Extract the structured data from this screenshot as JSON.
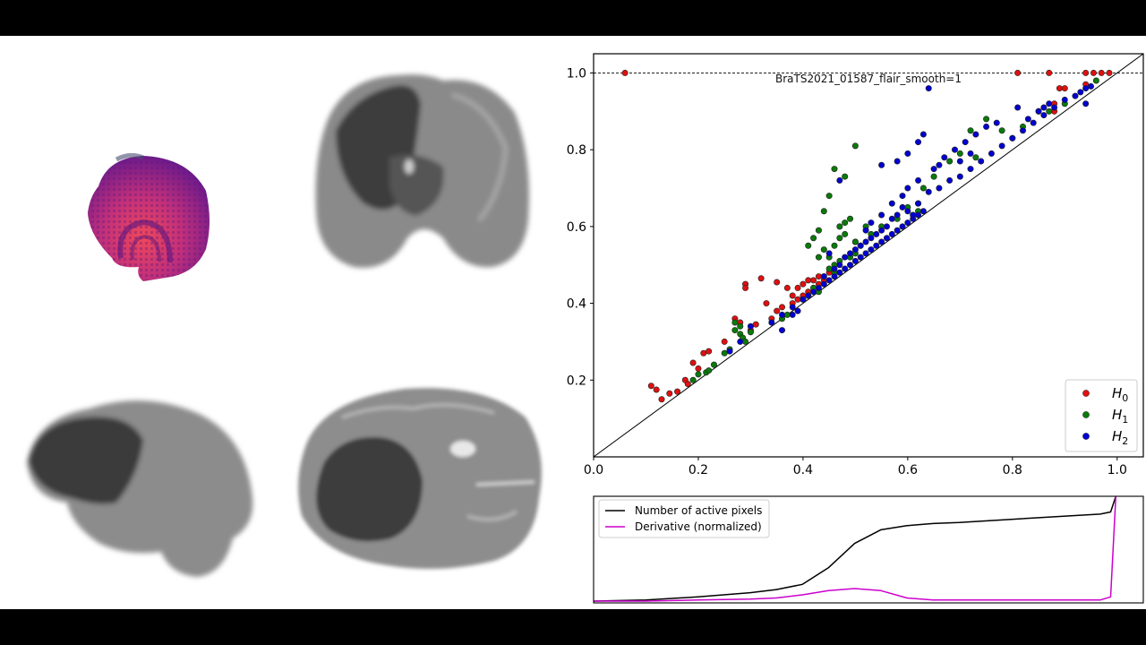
{
  "figure": {
    "title": "BraTS2021_01587_flair_smooth=1",
    "views": [
      {
        "name": "3d-render",
        "label": "3D volume render (magma colormap)"
      },
      {
        "name": "coronal-slice",
        "label": "Coronal slice"
      },
      {
        "name": "sagittal-slice",
        "label": "Sagittal slice"
      },
      {
        "name": "axial-slice",
        "label": "Axial slice"
      }
    ]
  },
  "colors": {
    "H0": "#e01010",
    "H1": "#0a7a0a",
    "H2": "#0000d0",
    "active_pixels": "#000000",
    "derivative": "#cc00cc"
  },
  "chart_data": [
    {
      "type": "scatter",
      "title": "BraTS2021_01587_flair_smooth=1",
      "xlabel": "",
      "ylabel": "",
      "xlim": [
        0.0,
        1.05
      ],
      "ylim": [
        0.0,
        1.05
      ],
      "xticks": [
        "0.0",
        "0.2",
        "0.4",
        "0.6",
        "0.8",
        "1.0"
      ],
      "yticks": [
        "0.2",
        "0.4",
        "0.6",
        "0.8",
        "1.0"
      ],
      "grid": false,
      "reference_lines": [
        {
          "type": "diagonal",
          "from": [
            0,
            0
          ],
          "to": [
            1.05,
            1.05
          ],
          "style": "solid"
        },
        {
          "type": "horizontal",
          "y": 1.0,
          "style": "dashed"
        }
      ],
      "legend": {
        "position": "lower right",
        "entries": [
          "H0",
          "H1",
          "H2"
        ]
      },
      "series": [
        {
          "name": "H0",
          "label_base": "H",
          "label_sub": "0",
          "points": [
            [
              0.06,
              1.0
            ],
            [
              0.81,
              1.0
            ],
            [
              0.87,
              1.0
            ],
            [
              0.94,
              1.0
            ],
            [
              0.955,
              1.0
            ],
            [
              0.97,
              1.0
            ],
            [
              0.985,
              1.0
            ],
            [
              0.11,
              0.185
            ],
            [
              0.12,
              0.175
            ],
            [
              0.13,
              0.15
            ],
            [
              0.145,
              0.165
            ],
            [
              0.16,
              0.17
            ],
            [
              0.175,
              0.2
            ],
            [
              0.18,
              0.19
            ],
            [
              0.2,
              0.23
            ],
            [
              0.19,
              0.245
            ],
            [
              0.21,
              0.27
            ],
            [
              0.22,
              0.275
            ],
            [
              0.25,
              0.3
            ],
            [
              0.28,
              0.35
            ],
            [
              0.27,
              0.36
            ],
            [
              0.3,
              0.33
            ],
            [
              0.29,
              0.45
            ],
            [
              0.29,
              0.44
            ],
            [
              0.32,
              0.465
            ],
            [
              0.35,
              0.455
            ],
            [
              0.37,
              0.44
            ],
            [
              0.33,
              0.4
            ],
            [
              0.38,
              0.42
            ],
            [
              0.39,
              0.44
            ],
            [
              0.4,
              0.45
            ],
            [
              0.41,
              0.43
            ],
            [
              0.42,
              0.46
            ],
            [
              0.43,
              0.47
            ],
            [
              0.44,
              0.46
            ],
            [
              0.38,
              0.4
            ],
            [
              0.36,
              0.39
            ],
            [
              0.35,
              0.38
            ],
            [
              0.4,
              0.42
            ],
            [
              0.42,
              0.44
            ],
            [
              0.45,
              0.48
            ],
            [
              0.39,
              0.41
            ],
            [
              0.34,
              0.36
            ],
            [
              0.31,
              0.345
            ],
            [
              0.43,
              0.45
            ],
            [
              0.41,
              0.46
            ],
            [
              0.5,
              0.56
            ],
            [
              0.62,
              0.66
            ],
            [
              0.88,
              0.92
            ],
            [
              0.89,
              0.96
            ],
            [
              0.9,
              0.96
            ],
            [
              0.94,
              0.97
            ],
            [
              0.88,
              0.9
            ]
          ]
        },
        {
          "name": "H1",
          "label_base": "H",
          "label_sub": "1",
          "points": [
            [
              0.19,
              0.2
            ],
            [
              0.2,
              0.215
            ],
            [
              0.215,
              0.22
            ],
            [
              0.22,
              0.225
            ],
            [
              0.23,
              0.24
            ],
            [
              0.25,
              0.27
            ],
            [
              0.26,
              0.28
            ],
            [
              0.27,
              0.33
            ],
            [
              0.27,
              0.35
            ],
            [
              0.28,
              0.32
            ],
            [
              0.285,
              0.31
            ],
            [
              0.29,
              0.3
            ],
            [
              0.3,
              0.325
            ],
            [
              0.28,
              0.34
            ],
            [
              0.36,
              0.36
            ],
            [
              0.37,
              0.37
            ],
            [
              0.4,
              0.41
            ],
            [
              0.41,
              0.42
            ],
            [
              0.42,
              0.44
            ],
            [
              0.43,
              0.43
            ],
            [
              0.44,
              0.47
            ],
            [
              0.45,
              0.49
            ],
            [
              0.46,
              0.5
            ],
            [
              0.45,
              0.52
            ],
            [
              0.46,
              0.55
            ],
            [
              0.47,
              0.6
            ],
            [
              0.48,
              0.61
            ],
            [
              0.49,
              0.62
            ],
            [
              0.47,
              0.57
            ],
            [
              0.44,
              0.54
            ],
            [
              0.43,
              0.52
            ],
            [
              0.48,
              0.58
            ],
            [
              0.5,
              0.56
            ],
            [
              0.51,
              0.55
            ],
            [
              0.52,
              0.6
            ],
            [
              0.53,
              0.58
            ],
            [
              0.5,
              0.53
            ],
            [
              0.47,
              0.51
            ],
            [
              0.46,
              0.48
            ],
            [
              0.49,
              0.52
            ],
            [
              0.48,
              0.73
            ],
            [
              0.5,
              0.81
            ],
            [
              0.46,
              0.75
            ],
            [
              0.45,
              0.68
            ],
            [
              0.44,
              0.64
            ],
            [
              0.41,
              0.55
            ],
            [
              0.42,
              0.57
            ],
            [
              0.43,
              0.59
            ],
            [
              0.55,
              0.6
            ],
            [
              0.58,
              0.62
            ],
            [
              0.6,
              0.65
            ],
            [
              0.62,
              0.64
            ],
            [
              0.63,
              0.7
            ],
            [
              0.65,
              0.73
            ],
            [
              0.68,
              0.77
            ],
            [
              0.7,
              0.79
            ],
            [
              0.72,
              0.85
            ],
            [
              0.75,
              0.88
            ],
            [
              0.78,
              0.85
            ],
            [
              0.8,
              0.83
            ],
            [
              0.82,
              0.86
            ],
            [
              0.85,
              0.9
            ],
            [
              0.87,
              0.9
            ],
            [
              0.9,
              0.92
            ],
            [
              0.96,
              0.98
            ],
            [
              0.73,
              0.78
            ]
          ]
        },
        {
          "name": "H2",
          "label_base": "H",
          "label_sub": "2",
          "points": [
            [
              0.26,
              0.275
            ],
            [
              0.28,
              0.3
            ],
            [
              0.3,
              0.34
            ],
            [
              0.34,
              0.35
            ],
            [
              0.36,
              0.37
            ],
            [
              0.38,
              0.39
            ],
            [
              0.4,
              0.41
            ],
            [
              0.41,
              0.42
            ],
            [
              0.42,
              0.43
            ],
            [
              0.43,
              0.44
            ],
            [
              0.44,
              0.45
            ],
            [
              0.45,
              0.46
            ],
            [
              0.46,
              0.47
            ],
            [
              0.47,
              0.48
            ],
            [
              0.48,
              0.49
            ],
            [
              0.49,
              0.5
            ],
            [
              0.5,
              0.51
            ],
            [
              0.51,
              0.52
            ],
            [
              0.52,
              0.53
            ],
            [
              0.53,
              0.54
            ],
            [
              0.54,
              0.55
            ],
            [
              0.55,
              0.56
            ],
            [
              0.56,
              0.57
            ],
            [
              0.57,
              0.58
            ],
            [
              0.58,
              0.59
            ],
            [
              0.59,
              0.6
            ],
            [
              0.6,
              0.61
            ],
            [
              0.61,
              0.62
            ],
            [
              0.62,
              0.63
            ],
            [
              0.63,
              0.64
            ],
            [
              0.44,
              0.47
            ],
            [
              0.46,
              0.49
            ],
            [
              0.48,
              0.52
            ],
            [
              0.5,
              0.54
            ],
            [
              0.52,
              0.56
            ],
            [
              0.54,
              0.58
            ],
            [
              0.56,
              0.6
            ],
            [
              0.58,
              0.63
            ],
            [
              0.6,
              0.64
            ],
            [
              0.62,
              0.66
            ],
            [
              0.47,
              0.5
            ],
            [
              0.49,
              0.53
            ],
            [
              0.51,
              0.55
            ],
            [
              0.53,
              0.57
            ],
            [
              0.55,
              0.59
            ],
            [
              0.57,
              0.62
            ],
            [
              0.59,
              0.65
            ],
            [
              0.61,
              0.63
            ],
            [
              0.53,
              0.61
            ],
            [
              0.55,
              0.63
            ],
            [
              0.45,
              0.53
            ],
            [
              0.52,
              0.59
            ],
            [
              0.57,
              0.66
            ],
            [
              0.59,
              0.68
            ],
            [
              0.6,
              0.7
            ],
            [
              0.62,
              0.72
            ],
            [
              0.64,
              0.69
            ],
            [
              0.66,
              0.7
            ],
            [
              0.68,
              0.72
            ],
            [
              0.7,
              0.73
            ],
            [
              0.72,
              0.75
            ],
            [
              0.74,
              0.77
            ],
            [
              0.76,
              0.79
            ],
            [
              0.78,
              0.81
            ],
            [
              0.8,
              0.83
            ],
            [
              0.82,
              0.85
            ],
            [
              0.84,
              0.87
            ],
            [
              0.86,
              0.89
            ],
            [
              0.88,
              0.91
            ],
            [
              0.9,
              0.93
            ],
            [
              0.65,
              0.75
            ],
            [
              0.67,
              0.78
            ],
            [
              0.69,
              0.8
            ],
            [
              0.71,
              0.82
            ],
            [
              0.73,
              0.84
            ],
            [
              0.75,
              0.86
            ],
            [
              0.77,
              0.87
            ],
            [
              0.83,
              0.88
            ],
            [
              0.85,
              0.9
            ],
            [
              0.87,
              0.92
            ],
            [
              0.92,
              0.94
            ],
            [
              0.93,
              0.95
            ],
            [
              0.94,
              0.96
            ],
            [
              0.95,
              0.965
            ],
            [
              0.6,
              0.79
            ],
            [
              0.58,
              0.77
            ],
            [
              0.63,
              0.84
            ],
            [
              0.55,
              0.76
            ],
            [
              0.64,
              0.96
            ],
            [
              0.81,
              0.91
            ],
            [
              0.86,
              0.91
            ],
            [
              0.47,
              0.72
            ],
            [
              0.36,
              0.33
            ],
            [
              0.38,
              0.37
            ],
            [
              0.39,
              0.38
            ],
            [
              0.62,
              0.82
            ],
            [
              0.66,
              0.76
            ],
            [
              0.7,
              0.77
            ],
            [
              0.72,
              0.79
            ],
            [
              0.94,
              0.92
            ]
          ]
        }
      ]
    },
    {
      "type": "line",
      "title": "",
      "xlabel": "",
      "ylabel": "",
      "legend": {
        "position": "upper left",
        "entries": [
          "Number of active pixels",
          "Derivative (normalized)"
        ]
      },
      "x": [
        0.0,
        0.1,
        0.2,
        0.3,
        0.35,
        0.4,
        0.45,
        0.5,
        0.55,
        0.6,
        0.65,
        0.7,
        0.8,
        0.9,
        0.97,
        0.99,
        1.0
      ],
      "series": [
        {
          "name": "Number of active pixels",
          "values": [
            0.0,
            0.01,
            0.04,
            0.08,
            0.11,
            0.16,
            0.32,
            0.55,
            0.68,
            0.72,
            0.74,
            0.75,
            0.78,
            0.81,
            0.83,
            0.85,
            1.0
          ]
        },
        {
          "name": "Derivative (normalized)",
          "values": [
            0.0,
            0.0,
            0.01,
            0.02,
            0.03,
            0.06,
            0.1,
            0.12,
            0.1,
            0.03,
            0.01,
            0.01,
            0.01,
            0.01,
            0.01,
            0.04,
            1.0
          ]
        }
      ]
    }
  ]
}
